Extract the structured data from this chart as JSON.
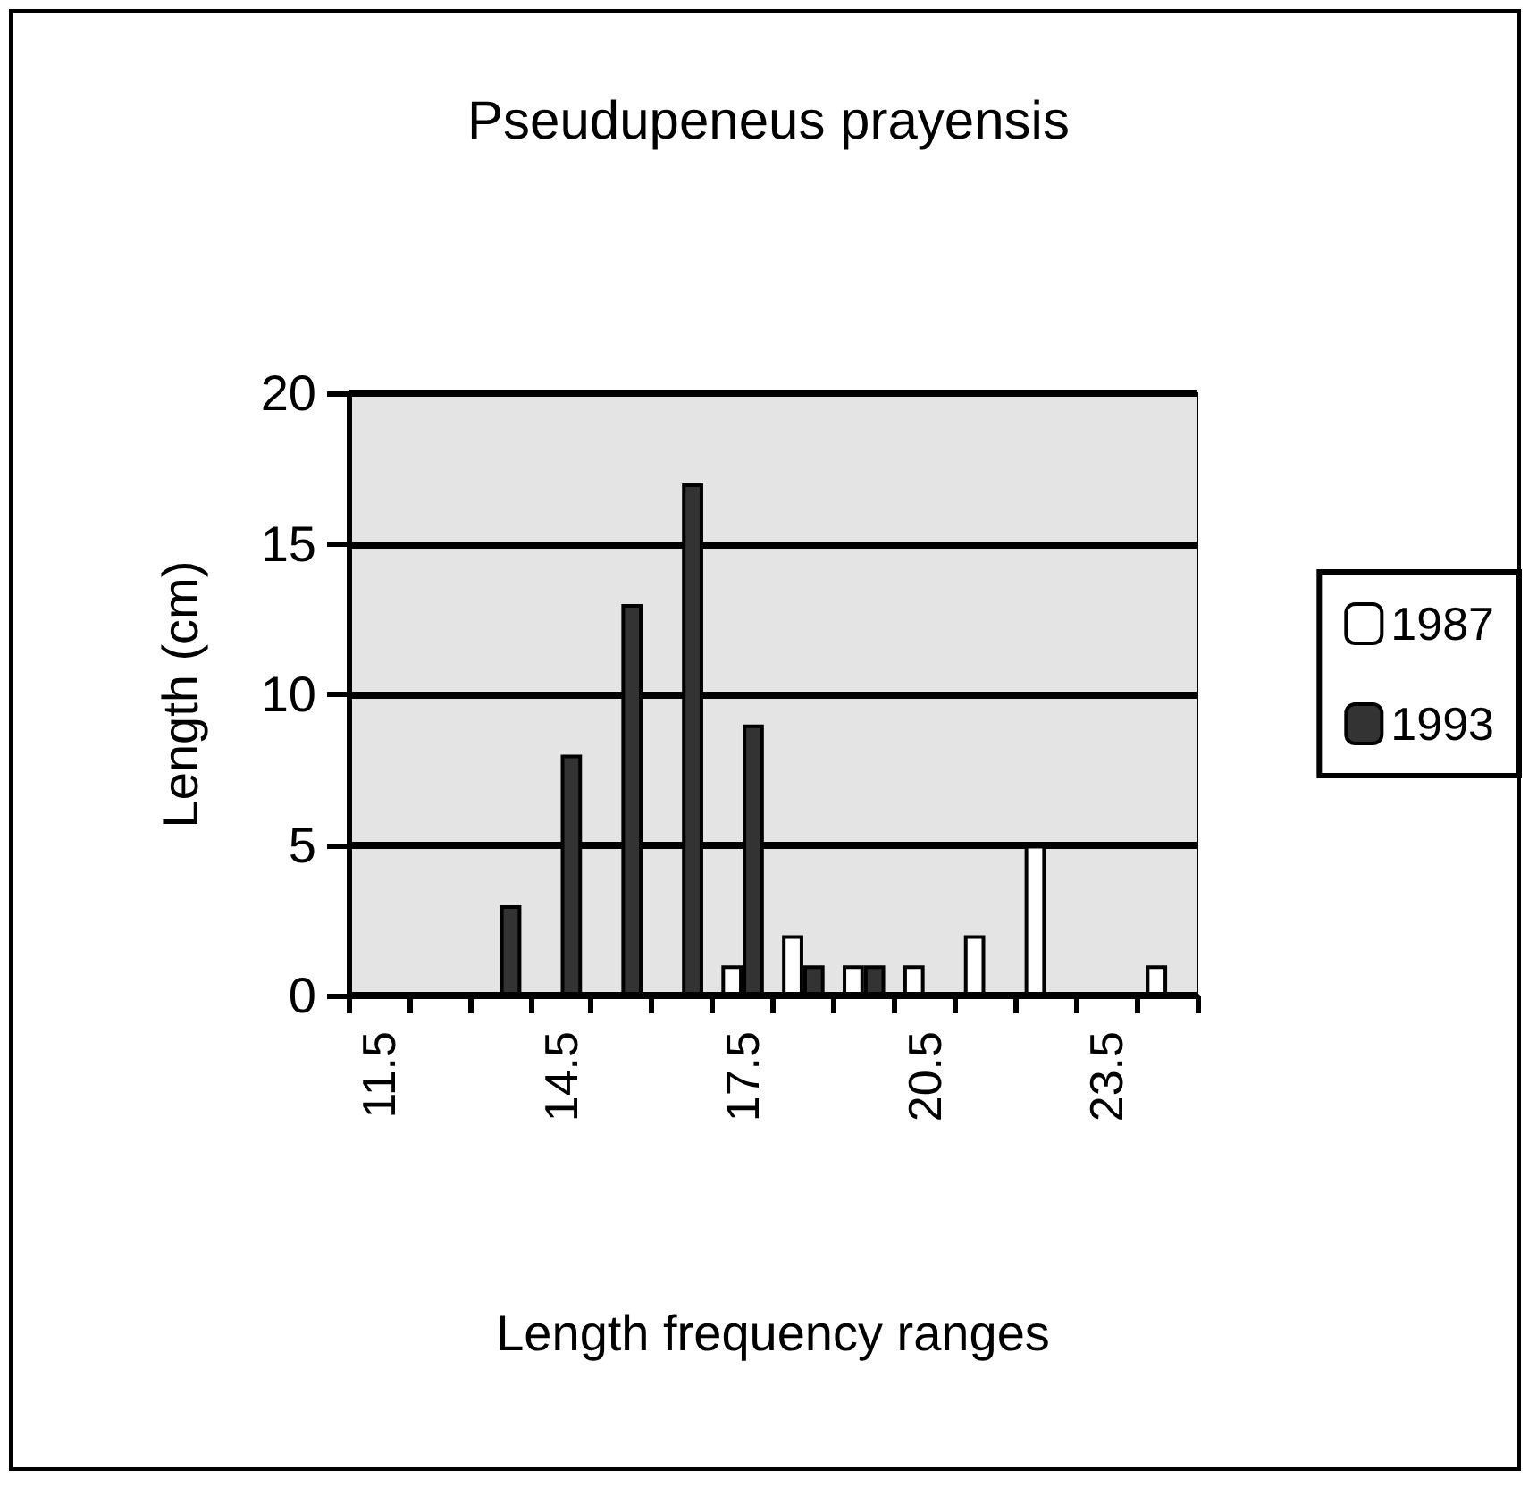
{
  "chart_data": {
    "type": "bar",
    "title": "Pseudupeneus prayensis",
    "xlabel": "Length frequency ranges",
    "ylabel": "Length (cm)",
    "categories": [
      "11.5",
      null,
      null,
      "14.5",
      null,
      null,
      "17.5",
      null,
      null,
      "20.5",
      null,
      null,
      "23.5",
      null
    ],
    "series": [
      {
        "name": "1987",
        "color": "#ffffff",
        "values": [
          0,
          0,
          0,
          0,
          0,
          0,
          1,
          2,
          1,
          1,
          2,
          5,
          0,
          1
        ]
      },
      {
        "name": "1993",
        "color": "#333333",
        "values": [
          0,
          0,
          3,
          8,
          13,
          17,
          9,
          1,
          1,
          0,
          0,
          0,
          0,
          0
        ]
      }
    ],
    "ylim": [
      0,
      20
    ],
    "yticks": [
      0,
      5,
      10,
      15,
      20
    ],
    "grid": "y",
    "legend": "right"
  }
}
